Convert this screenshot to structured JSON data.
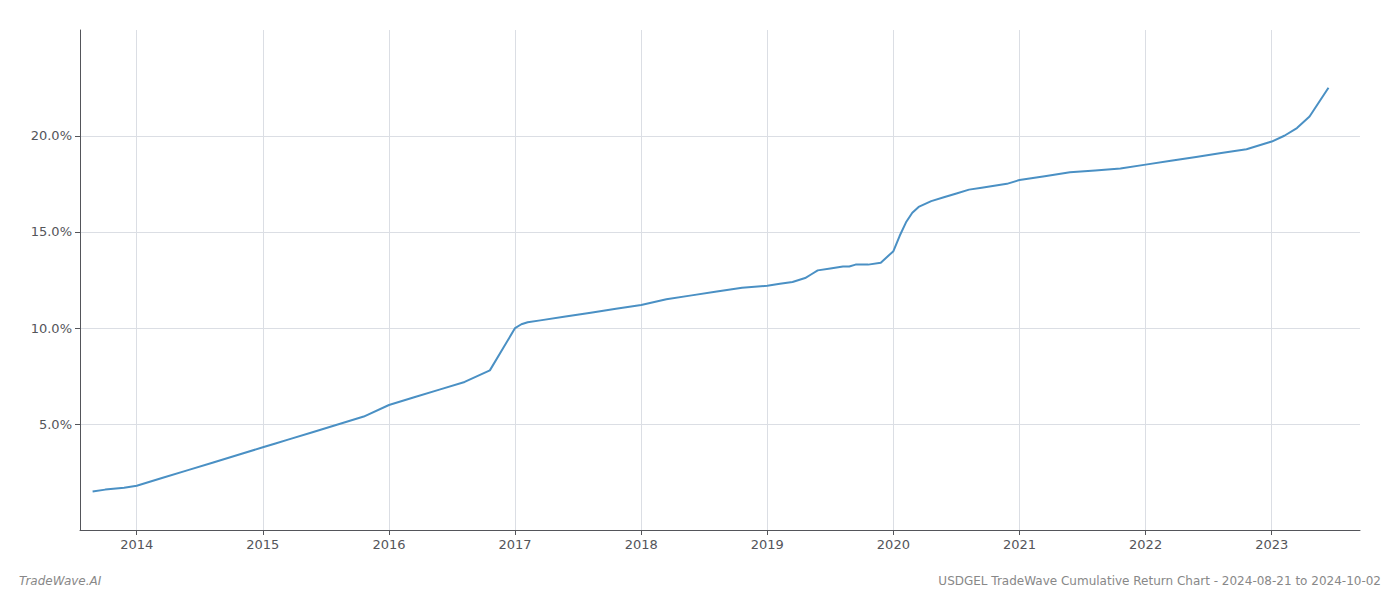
{
  "chart_data": {
    "type": "line",
    "title": "USDGEL TradeWave Cumulative Return Chart - 2024-08-21 to 2024-10-02",
    "annotations": [
      "TradeWave.AI"
    ],
    "color": "#4a90c4",
    "grid": true,
    "xlim": [
      2013.55,
      2023.7
    ],
    "ylim": [
      -0.005,
      0.255
    ],
    "xticks": [
      2014,
      2015,
      2016,
      2017,
      2018,
      2019,
      2020,
      2021,
      2022,
      2023
    ],
    "yticks": [
      {
        "value": 0.05,
        "label": "5.0%"
      },
      {
        "value": 0.1,
        "label": "10.0%"
      },
      {
        "value": 0.15,
        "label": "15.0%"
      },
      {
        "value": 0.2,
        "label": "20.0%"
      }
    ],
    "x": [
      2013.65,
      2013.75,
      2013.9,
      2014.0,
      2014.2,
      2014.4,
      2014.6,
      2014.8,
      2015.0,
      2015.1,
      2015.2,
      2015.4,
      2015.6,
      2015.8,
      2016.0,
      2016.2,
      2016.4,
      2016.6,
      2016.8,
      2017.0,
      2017.05,
      2017.1,
      2017.2,
      2017.4,
      2017.6,
      2017.8,
      2018.0,
      2018.2,
      2018.4,
      2018.6,
      2018.8,
      2019.0,
      2019.1,
      2019.2,
      2019.3,
      2019.35,
      2019.4,
      2019.5,
      2019.6,
      2019.65,
      2019.7,
      2019.8,
      2019.9,
      2020.0,
      2020.05,
      2020.1,
      2020.15,
      2020.2,
      2020.3,
      2020.4,
      2020.5,
      2020.6,
      2020.7,
      2020.8,
      2020.9,
      2021.0,
      2021.2,
      2021.4,
      2021.6,
      2021.8,
      2022.0,
      2022.2,
      2022.4,
      2022.6,
      2022.8,
      2023.0,
      2023.1,
      2023.2,
      2023.3,
      2023.45
    ],
    "values": [
      0.015,
      0.016,
      0.017,
      0.018,
      0.022,
      0.026,
      0.03,
      0.034,
      0.038,
      0.04,
      0.042,
      0.046,
      0.05,
      0.054,
      0.06,
      0.064,
      0.068,
      0.072,
      0.078,
      0.1,
      0.102,
      0.103,
      0.104,
      0.106,
      0.108,
      0.11,
      0.112,
      0.115,
      0.117,
      0.119,
      0.121,
      0.122,
      0.123,
      0.124,
      0.126,
      0.128,
      0.13,
      0.131,
      0.132,
      0.132,
      0.133,
      0.133,
      0.134,
      0.14,
      0.148,
      0.155,
      0.16,
      0.163,
      0.166,
      0.168,
      0.17,
      0.172,
      0.173,
      0.174,
      0.175,
      0.177,
      0.179,
      0.181,
      0.182,
      0.183,
      0.185,
      0.187,
      0.189,
      0.191,
      0.193,
      0.197,
      0.2,
      0.204,
      0.21,
      0.225
    ]
  }
}
